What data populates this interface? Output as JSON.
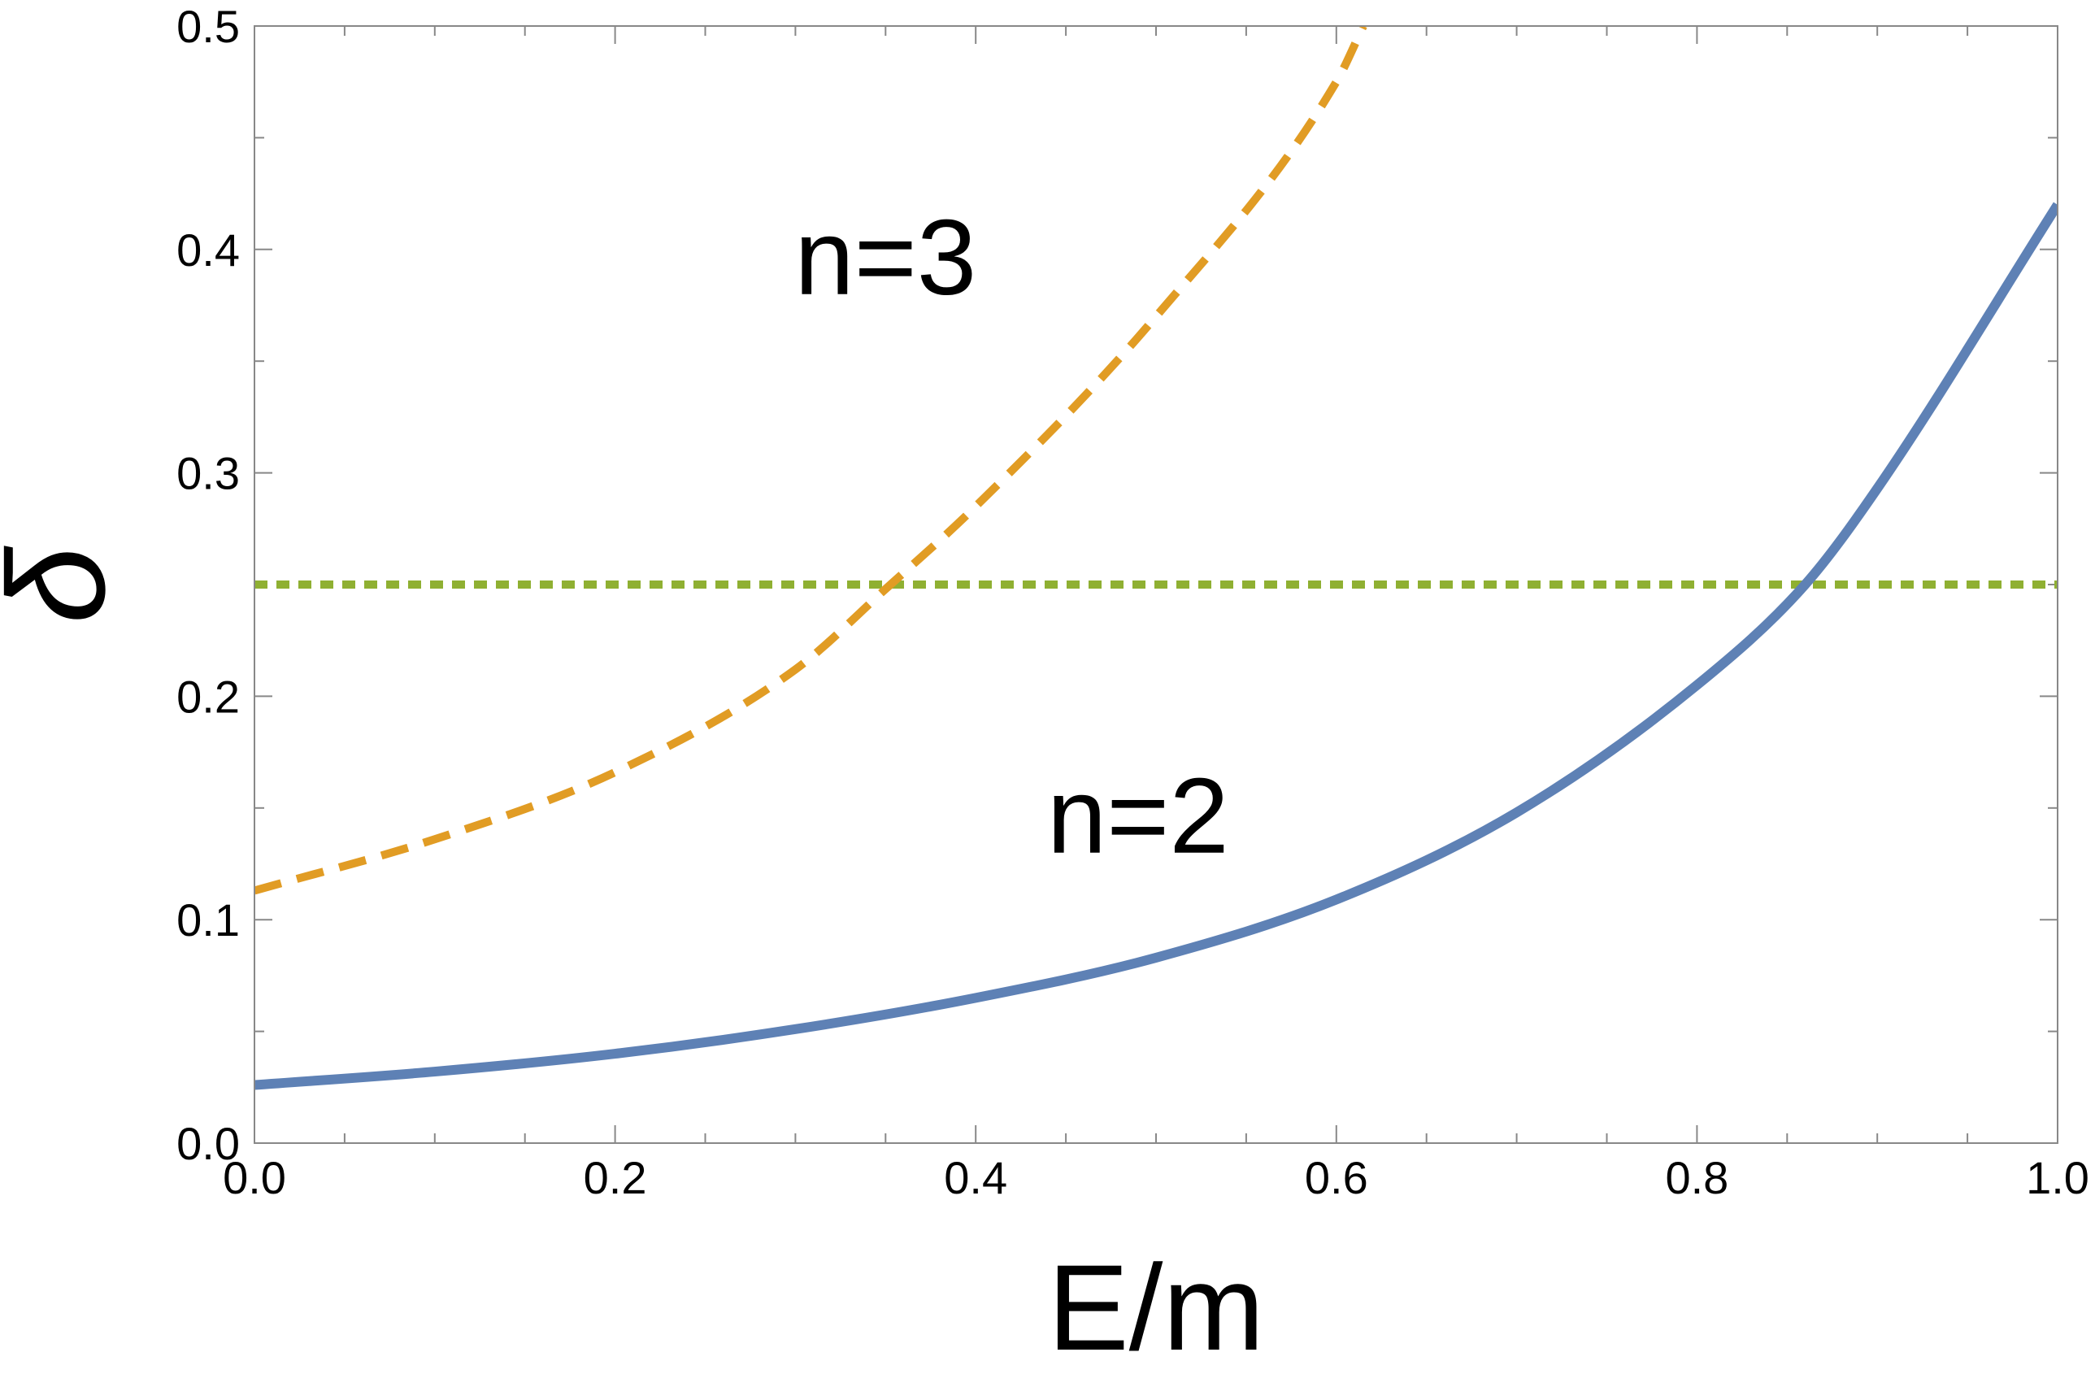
{
  "chart_data": {
    "type": "line",
    "title": "",
    "xlabel": "E/m",
    "ylabel": "δ",
    "xlim": [
      0.0,
      1.0
    ],
    "ylim": [
      0.0,
      0.5
    ],
    "x_ticks": [
      "0.0",
      "0.2",
      "0.4",
      "0.6",
      "0.8",
      "1.0"
    ],
    "y_ticks": [
      "0.0",
      "0.1",
      "0.2",
      "0.3",
      "0.4",
      "0.5"
    ],
    "grid": false,
    "series": [
      {
        "name": "n=2",
        "color": "#5E81B5",
        "style": "solid",
        "x": [
          0.0,
          0.1,
          0.2,
          0.3,
          0.4,
          0.5,
          0.6,
          0.7,
          0.8,
          0.86,
          0.9,
          1.0
        ],
        "y": [
          0.026,
          0.032,
          0.04,
          0.051,
          0.065,
          0.083,
          0.109,
          0.148,
          0.205,
          0.25,
          0.293,
          0.42
        ]
      },
      {
        "name": "n=3",
        "color": "#E19C24",
        "style": "dashed",
        "x": [
          0.0,
          0.1,
          0.2,
          0.3,
          0.35,
          0.4,
          0.5,
          0.6,
          0.615
        ],
        "y": [
          0.113,
          0.136,
          0.166,
          0.212,
          0.248,
          0.285,
          0.37,
          0.475,
          0.5
        ]
      },
      {
        "name": "",
        "color": "#8FB032",
        "style": "dotted",
        "x": [
          0.0,
          1.0
        ],
        "y": [
          0.25,
          0.25
        ]
      }
    ],
    "annotations": [
      {
        "text": "n=3",
        "x": 0.35,
        "y": 0.38
      },
      {
        "text": "n=2",
        "x": 0.49,
        "y": 0.13
      }
    ]
  }
}
